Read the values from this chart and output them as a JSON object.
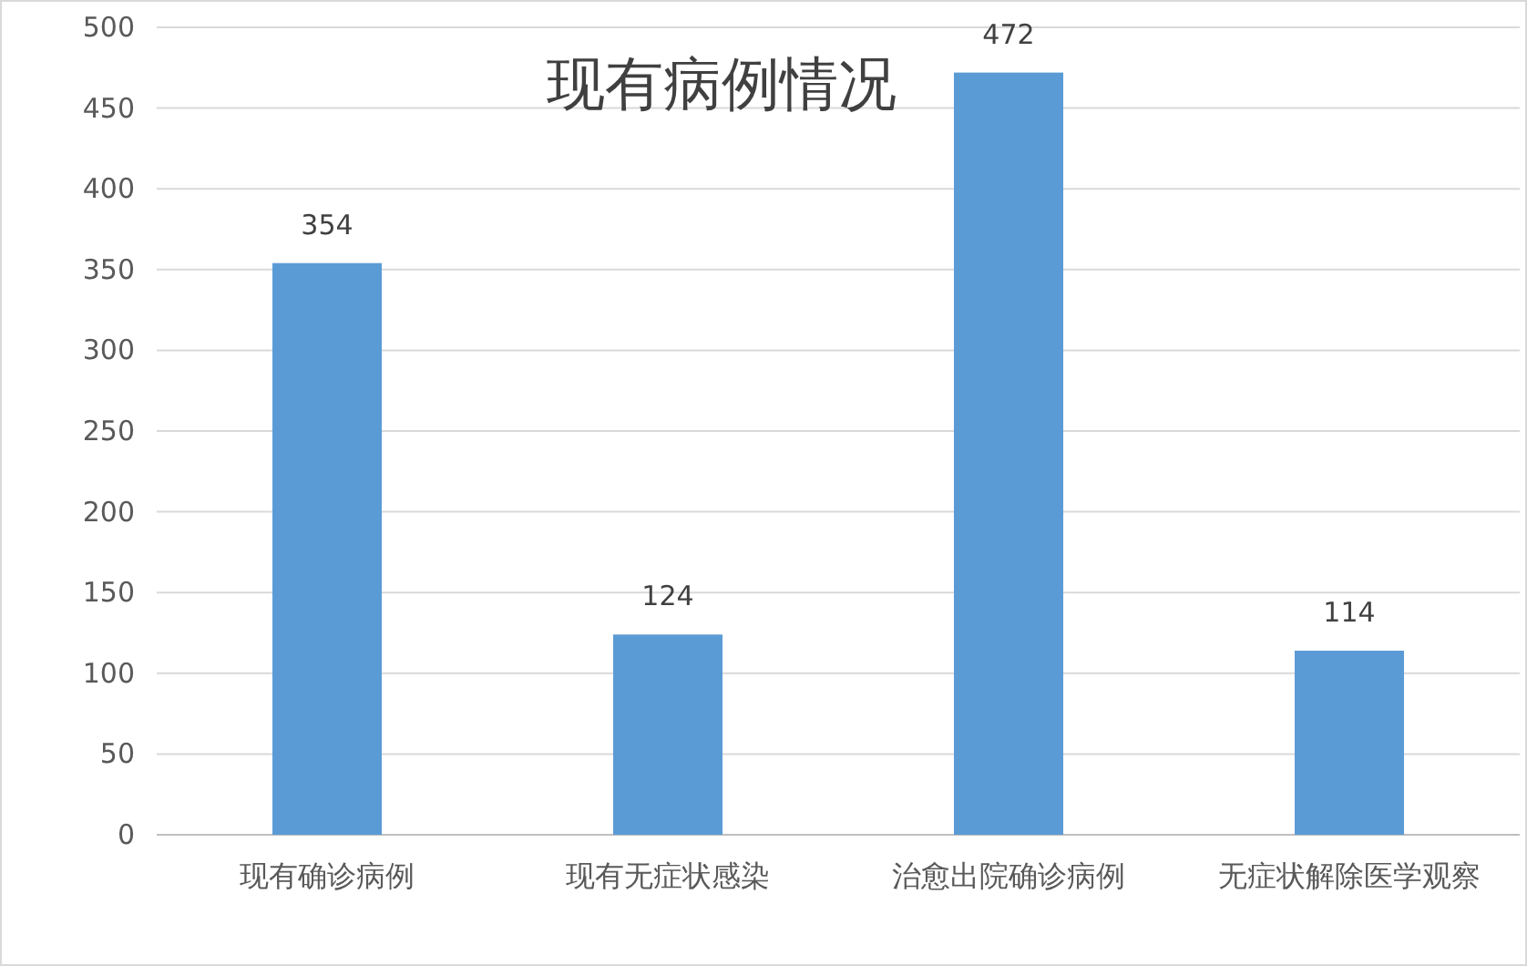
{
  "chart_data": {
    "type": "bar",
    "title": "现有病例情况",
    "categories": [
      "现有确诊病例",
      "现有无症状感染",
      "治愈出院确诊病例",
      "无症状解除医学观察"
    ],
    "values": [
      354,
      124,
      472,
      114
    ],
    "color": "#5b9bd5",
    "ylim": [
      0,
      500
    ],
    "yticks": [
      0,
      50,
      100,
      150,
      200,
      250,
      300,
      350,
      400,
      450,
      500
    ],
    "grid": "y",
    "data_labels": true
  }
}
